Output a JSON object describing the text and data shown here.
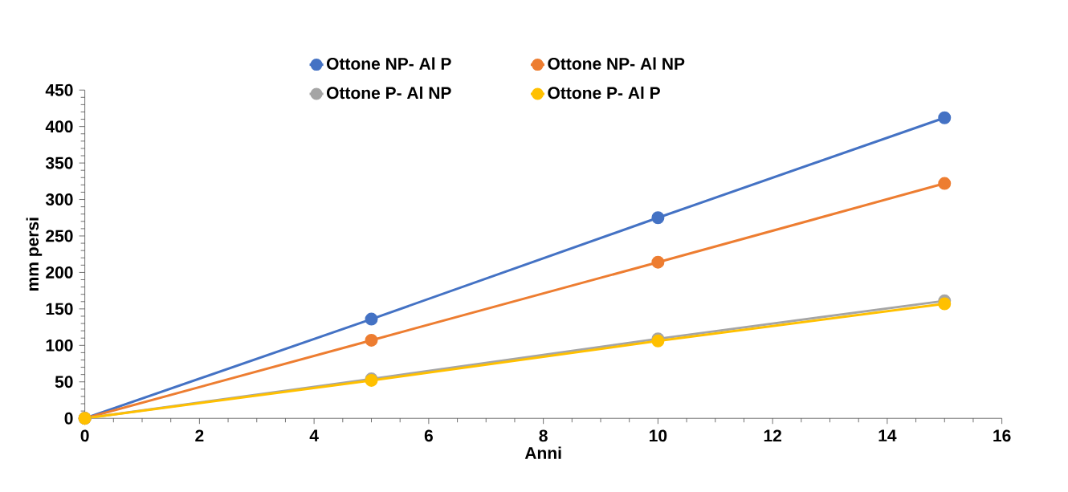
{
  "chart_data": {
    "type": "line",
    "xlabel": "Anni",
    "ylabel": "mm persi",
    "x": [
      0,
      5,
      10,
      15
    ],
    "series": [
      {
        "name": "Ottone NP- Al P",
        "color": "#4472c4",
        "values": [
          0,
          136,
          275,
          412
        ]
      },
      {
        "name": "Ottone NP- Al NP",
        "color": "#ed7d31",
        "values": [
          0,
          107,
          214,
          322
        ]
      },
      {
        "name": "Ottone P- Al NP",
        "color": "#a5a5a5",
        "values": [
          0,
          54,
          109,
          161
        ]
      },
      {
        "name": "Ottone P- Al P",
        "color": "#ffc000",
        "values": [
          0,
          52,
          106,
          157
        ]
      }
    ],
    "xlim": [
      0,
      16
    ],
    "xticks": [
      0,
      2,
      4,
      6,
      8,
      10,
      12,
      14,
      16
    ],
    "ylim": [
      0,
      450
    ],
    "yticks": [
      0,
      50,
      100,
      150,
      200,
      250,
      300,
      350,
      400,
      450
    ],
    "grid": false,
    "legend": "top",
    "marker": "circle",
    "line_style": "solid"
  }
}
